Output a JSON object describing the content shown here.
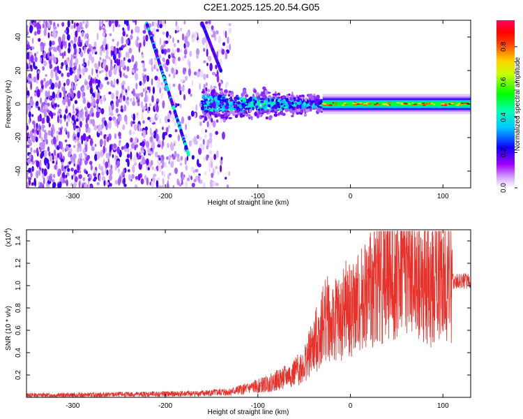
{
  "title": "C2E1.2025.125.20.54.G05",
  "chart_data": [
    {
      "type": "heatmap",
      "xlabel": "Height of straight line (km)",
      "ylabel": "Frequency (Hz)",
      "xlim": [
        -350,
        130
      ],
      "ylim": [
        -50,
        50
      ],
      "xticks": [
        -300,
        -200,
        -100,
        0,
        100
      ],
      "yticks": [
        -40,
        -20,
        0,
        20,
        40
      ],
      "colorbar": {
        "label": "Normalized spectral amplitude",
        "range": [
          0.0,
          0.95
        ],
        "ticks": [
          "0.0",
          "0.2",
          "0.4",
          "0.6",
          "0.8"
        ],
        "colors": [
          "#ffffff",
          "#a000ff",
          "#0000ff",
          "#00ffff",
          "#00ff00",
          "#ffff00",
          "#ff8000",
          "#ff0000",
          "#ff0080"
        ]
      },
      "features": [
        {
          "name": "steady carrier",
          "x_range": [
            -30,
            130
          ],
          "frequency": 0
        },
        {
          "name": "broadened carrier",
          "x_range": [
            -160,
            -30
          ],
          "frequency_spread": [
            -15,
            15
          ]
        },
        {
          "name": "noise",
          "x_range": [
            -350,
            -130
          ],
          "frequency_spread": [
            -50,
            50
          ]
        },
        {
          "name": "diagonal track 1",
          "from": [
            -220,
            48
          ],
          "to": [
            -175,
            -30
          ]
        },
        {
          "name": "diagonal track 2",
          "from": [
            -160,
            48
          ],
          "to": [
            -140,
            20
          ]
        }
      ]
    },
    {
      "type": "line",
      "xlabel": "Height of straight line (km)",
      "ylabel": "SNR (10 * v/v)",
      "y_multiplier": "(x10",
      "y_multiplier_exp": "4",
      "y_multiplier_close": ")",
      "xlim": [
        -350,
        130
      ],
      "ylim": [
        0,
        1.5
      ],
      "xticks": [
        -300,
        -200,
        -100,
        0,
        100
      ],
      "yticks": [
        "0.2",
        "0.4",
        "0.6",
        "0.8",
        "1.0",
        "1.2",
        "1.4"
      ],
      "color": "#e8312a",
      "series": [
        {
          "x": [
            -350,
            -300,
            -250,
            -200,
            -160,
            -130,
            -110,
            -100,
            -90,
            -80,
            -70,
            -60,
            -50,
            -40,
            -30,
            -25,
            -20,
            -15,
            -10,
            -5,
            0,
            10,
            20,
            30,
            40,
            50,
            60,
            70,
            80,
            90,
            95,
            100,
            110,
            120,
            130
          ],
          "y": [
            0.02,
            0.02,
            0.025,
            0.03,
            0.035,
            0.05,
            0.08,
            0.1,
            0.12,
            0.15,
            0.18,
            0.22,
            0.3,
            0.45,
            0.65,
            0.75,
            0.6,
            0.72,
            0.68,
            0.8,
            0.75,
            0.85,
            0.95,
            1.05,
            1.1,
            1.15,
            1.18,
            1.05,
            1.0,
            1.02,
            1.06,
            1.05,
            1.04,
            1.04,
            1.04
          ]
        }
      ]
    }
  ]
}
